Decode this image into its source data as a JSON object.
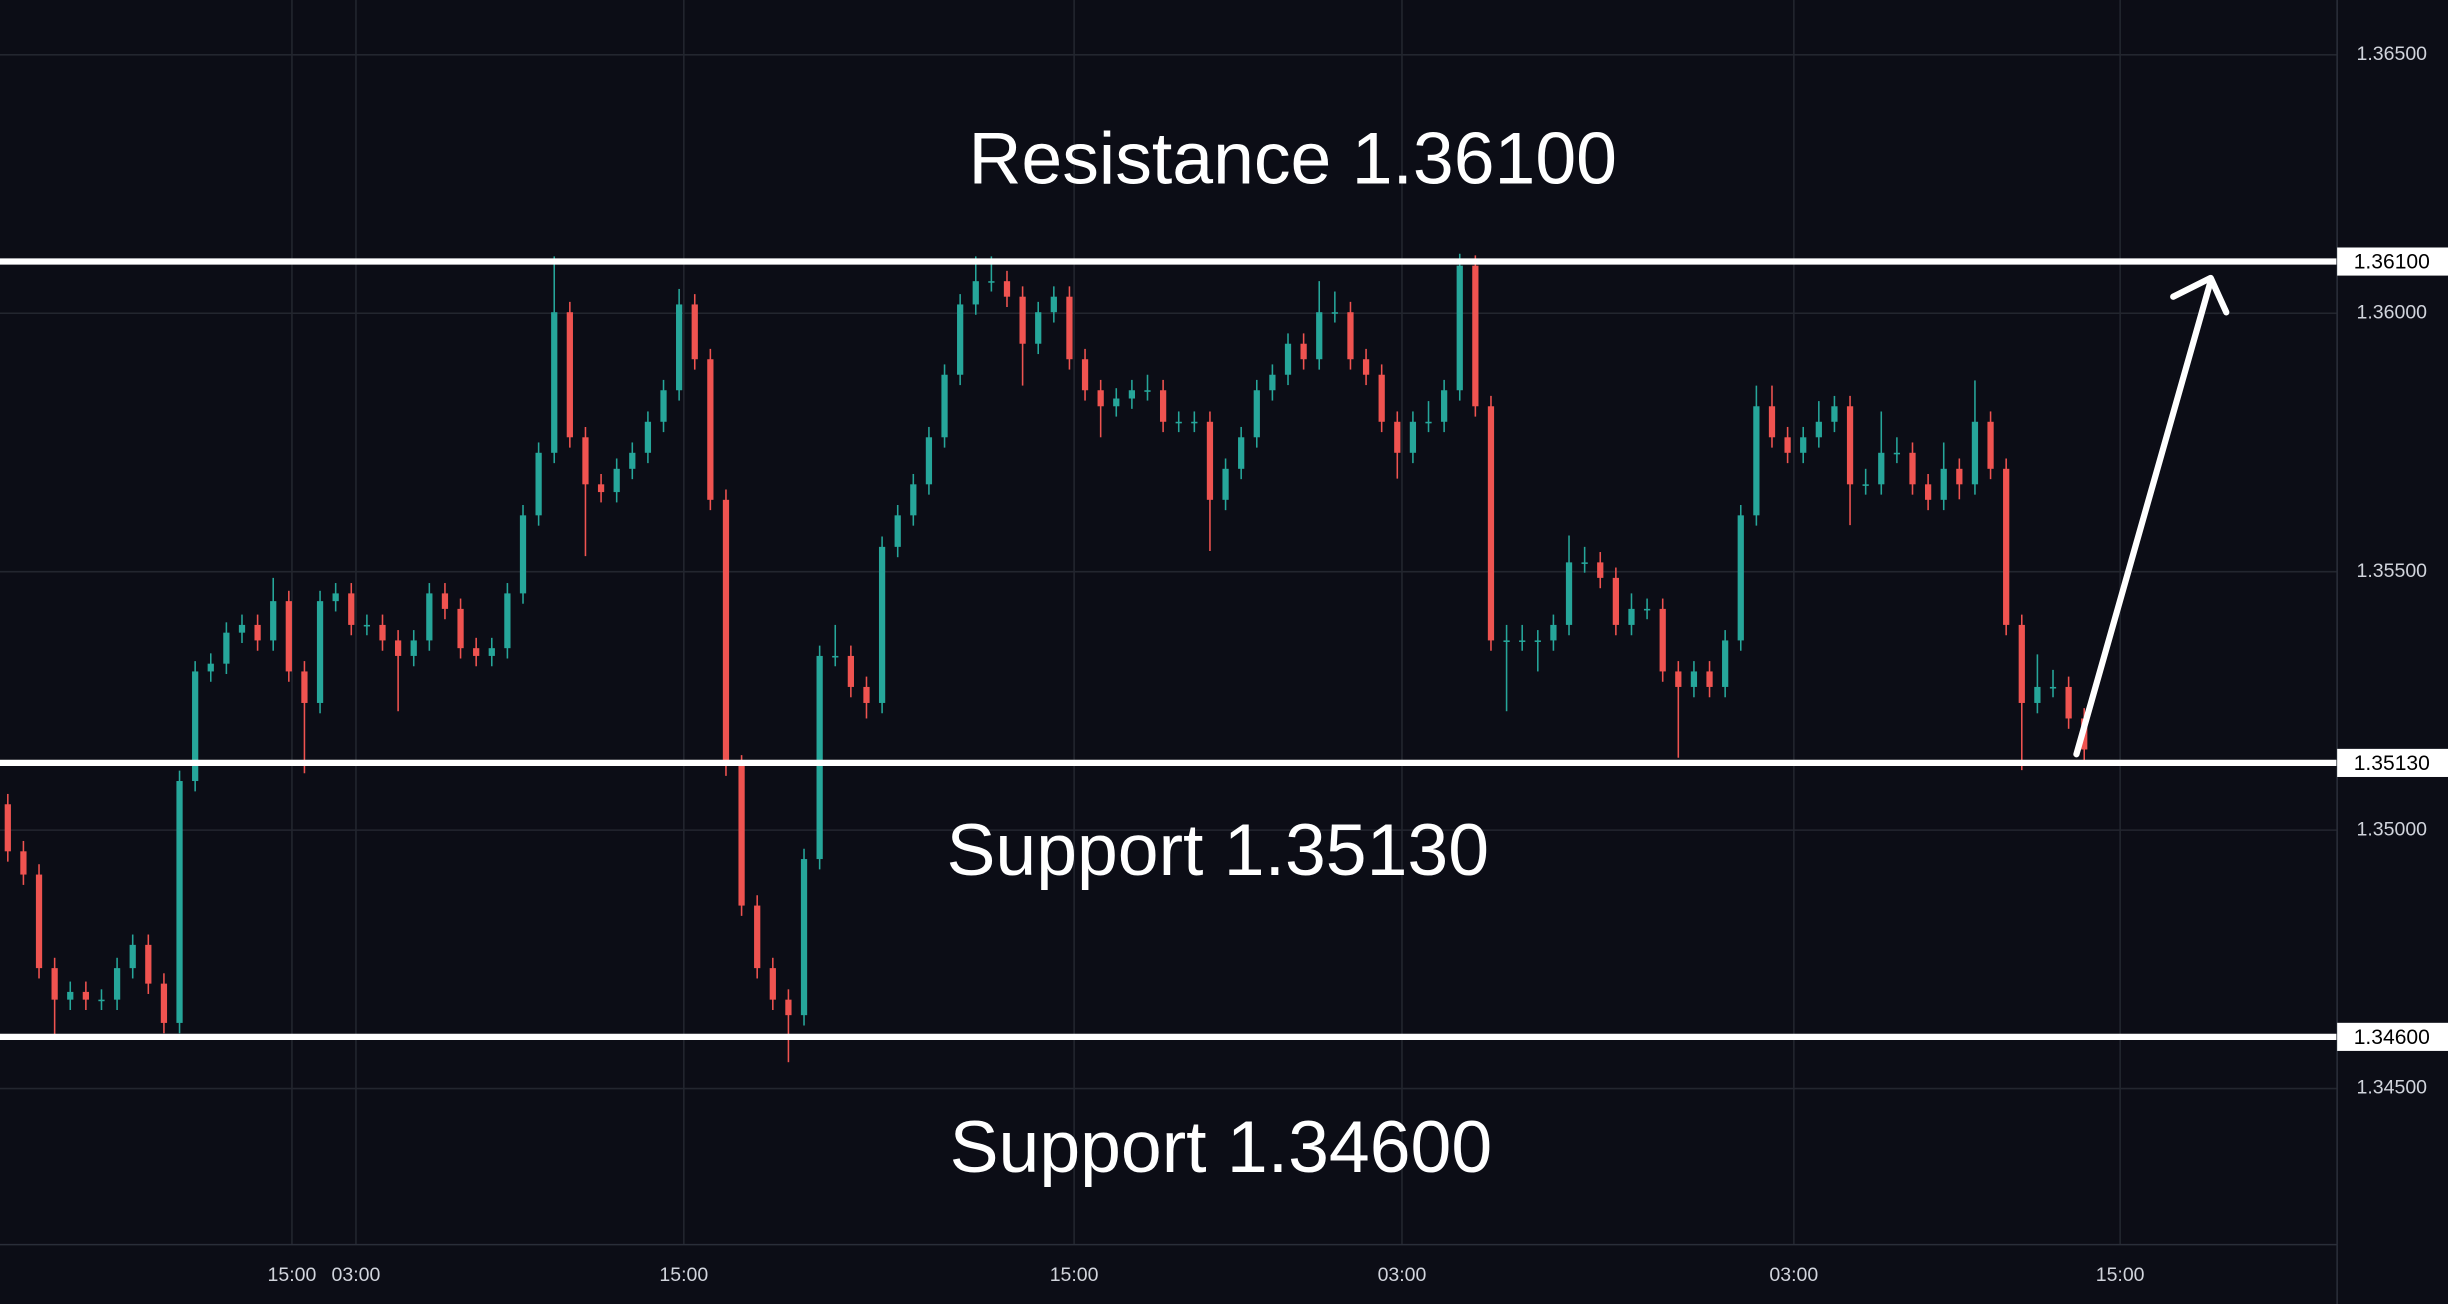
{
  "chart_data": {
    "type": "candlestick",
    "grid": true,
    "up_color": "#26a69a",
    "down_color": "#ef5350",
    "annotations": [
      "Resistance 1.36100",
      "Support 1.35130",
      "Support 1.34600"
    ],
    "levels": [
      {
        "value": 1.361,
        "label": "1.36100"
      },
      {
        "value": 1.3513,
        "label": "1.35130"
      },
      {
        "value": 1.346,
        "label": "1.34600"
      }
    ],
    "xlim": [
      -0.5,
      149.2
    ],
    "xticks": [
      {
        "value": 18.2,
        "label": "15:00"
      },
      {
        "value": 22.3,
        "label": "03:00"
      },
      {
        "value": 43.3,
        "label": "15:00"
      },
      {
        "value": 68.3,
        "label": "15:00"
      },
      {
        "value": 89.3,
        "label": "03:00"
      },
      {
        "value": 114.4,
        "label": "03:00"
      },
      {
        "value": 135.3,
        "label": "15:00"
      }
    ],
    "ylim": [
      1.34198,
      1.36606
    ],
    "yticks": [
      {
        "value": 1.345,
        "label": "1.34500"
      },
      {
        "value": 1.35,
        "label": "1.35000"
      },
      {
        "value": 1.355,
        "label": "1.35500"
      },
      {
        "value": 1.36,
        "label": "1.36000"
      },
      {
        "value": 1.365,
        "label": "1.36500"
      }
    ],
    "open": [
      1.3505,
      1.34959,
      1.34914,
      1.34733,
      1.34672,
      1.34687,
      1.34672,
      1.34672,
      1.34733,
      1.34778,
      1.34703,
      1.34627,
      1.35095,
      1.35307,
      1.35322,
      1.35382,
      1.35397,
      1.35367,
      1.35443,
      1.35307,
      1.35246,
      1.35443,
      1.35458,
      1.35397,
      1.35397,
      1.35367,
      1.35337,
      1.35367,
      1.35458,
      1.35428,
      1.35352,
      1.35337,
      1.35352,
      1.35458,
      1.35609,
      1.3573,
      1.36002,
      1.3576,
      1.35669,
      1.35654,
      1.35699,
      1.3573,
      1.3579,
      1.35851,
      1.36017,
      1.35911,
      1.35639,
      1.35125,
      1.34854,
      1.34733,
      1.34672,
      1.34642,
      1.34944,
      1.35337,
      1.35337,
      1.35277,
      1.35246,
      1.35548,
      1.35609,
      1.35669,
      1.3576,
      1.35881,
      1.36017,
      1.36062,
      1.36062,
      1.36032,
      1.35941,
      1.36002,
      1.36032,
      1.35911,
      1.35851,
      1.3582,
      1.35835,
      1.35851,
      1.35851,
      1.3579,
      1.3579,
      1.3579,
      1.35639,
      1.35699,
      1.3576,
      1.35851,
      1.35881,
      1.35941,
      1.35911,
      1.36002,
      1.36002,
      1.35911,
      1.35881,
      1.3579,
      1.3573,
      1.3579,
      1.3579,
      1.35851,
      1.36092,
      1.3582,
      1.35367,
      1.35367,
      1.35367,
      1.35367,
      1.35397,
      1.35518,
      1.35518,
      1.35488,
      1.35397,
      1.35428,
      1.35428,
      1.35307,
      1.35277,
      1.35307,
      1.35277,
      1.35367,
      1.35609,
      1.3582,
      1.3576,
      1.3573,
      1.3576,
      1.3579,
      1.3582,
      1.35669,
      1.35669,
      1.3573,
      1.3573,
      1.35669,
      1.35639,
      1.35699,
      1.35669,
      1.3579,
      1.35699,
      1.35397,
      1.35246,
      1.35277,
      1.35277,
      1.35216
    ],
    "high": [
      1.3507,
      1.34979,
      1.34934,
      1.34753,
      1.34707,
      1.34707,
      1.34692,
      1.34753,
      1.34798,
      1.34798,
      1.34723,
      1.35115,
      1.35327,
      1.35342,
      1.35402,
      1.35417,
      1.35417,
      1.35488,
      1.35463,
      1.35327,
      1.35463,
      1.35478,
      1.35478,
      1.35417,
      1.35417,
      1.35387,
      1.35387,
      1.35478,
      1.35478,
      1.35448,
      1.35372,
      1.35372,
      1.35478,
      1.35629,
      1.3575,
      1.3611,
      1.36022,
      1.3578,
      1.35689,
      1.35719,
      1.3575,
      1.3581,
      1.35871,
      1.36047,
      1.36037,
      1.35931,
      1.35659,
      1.35145,
      1.34874,
      1.34753,
      1.34692,
      1.34964,
      1.35357,
      1.35397,
      1.35357,
      1.35297,
      1.35568,
      1.35629,
      1.35689,
      1.3578,
      1.35901,
      1.36037,
      1.3611,
      1.3611,
      1.36082,
      1.36052,
      1.36022,
      1.36052,
      1.36052,
      1.35931,
      1.35871,
      1.35855,
      1.35871,
      1.35881,
      1.35871,
      1.3581,
      1.3581,
      1.3581,
      1.35719,
      1.3578,
      1.35871,
      1.35901,
      1.35961,
      1.35961,
      1.36062,
      1.36042,
      1.36022,
      1.35931,
      1.35901,
      1.3581,
      1.3581,
      1.3583,
      1.35871,
      1.36115,
      1.36112,
      1.3584,
      1.35397,
      1.35397,
      1.35387,
      1.35417,
      1.3557,
      1.35548,
      1.35538,
      1.35508,
      1.35458,
      1.35448,
      1.35448,
      1.35327,
      1.35327,
      1.35327,
      1.35387,
      1.35629,
      1.3586,
      1.3586,
      1.3578,
      1.3578,
      1.3583,
      1.3584,
      1.3584,
      1.35699,
      1.3581,
      1.3576,
      1.3575,
      1.35689,
      1.3575,
      1.35719,
      1.3587,
      1.3581,
      1.35719,
      1.35417,
      1.3534,
      1.3531,
      1.35297,
      1.35236
    ],
    "low": [
      1.34939,
      1.34894,
      1.34713,
      1.346,
      1.34652,
      1.34652,
      1.34652,
      1.34652,
      1.34713,
      1.34683,
      1.34607,
      1.34607,
      1.35075,
      1.35287,
      1.35302,
      1.35362,
      1.35347,
      1.35347,
      1.35287,
      1.3511,
      1.35226,
      1.35423,
      1.35377,
      1.35377,
      1.35347,
      1.3523,
      1.35317,
      1.35347,
      1.35408,
      1.35332,
      1.35317,
      1.35317,
      1.35332,
      1.35438,
      1.35589,
      1.3571,
      1.3574,
      1.3553,
      1.35634,
      1.35634,
      1.35679,
      1.3571,
      1.3577,
      1.35831,
      1.35891,
      1.35619,
      1.35105,
      1.34834,
      1.34713,
      1.34652,
      1.34551,
      1.34622,
      1.34924,
      1.35317,
      1.35257,
      1.35216,
      1.35226,
      1.35528,
      1.35589,
      1.35649,
      1.3574,
      1.35861,
      1.35997,
      1.36042,
      1.36012,
      1.3586,
      1.35921,
      1.35982,
      1.35891,
      1.35831,
      1.3576,
      1.358,
      1.35815,
      1.35831,
      1.3577,
      1.3577,
      1.3577,
      1.3554,
      1.35619,
      1.35679,
      1.3574,
      1.35831,
      1.35861,
      1.35891,
      1.35891,
      1.35982,
      1.35891,
      1.35861,
      1.3577,
      1.3568,
      1.3571,
      1.3577,
      1.3577,
      1.35831,
      1.358,
      1.35347,
      1.3523,
      1.35347,
      1.35307,
      1.35347,
      1.35377,
      1.35498,
      1.35468,
      1.35377,
      1.35377,
      1.35408,
      1.35287,
      1.3514,
      1.35257,
      1.35257,
      1.35257,
      1.35347,
      1.35589,
      1.3574,
      1.3571,
      1.3571,
      1.3574,
      1.3577,
      1.3559,
      1.35649,
      1.35649,
      1.3571,
      1.35649,
      1.35619,
      1.35619,
      1.3564,
      1.35649,
      1.35679,
      1.35377,
      1.35116,
      1.35226,
      1.35257,
      1.35196,
      1.3513
    ],
    "close": [
      1.34959,
      1.34914,
      1.34733,
      1.34672,
      1.34687,
      1.34672,
      1.34672,
      1.34733,
      1.34778,
      1.34703,
      1.34627,
      1.35095,
      1.35307,
      1.35322,
      1.35382,
      1.35397,
      1.35367,
      1.35443,
      1.35307,
      1.35246,
      1.35443,
      1.35458,
      1.35397,
      1.35397,
      1.35367,
      1.35337,
      1.35367,
      1.35458,
      1.35428,
      1.35352,
      1.35337,
      1.35352,
      1.35458,
      1.35609,
      1.3573,
      1.36002,
      1.3576,
      1.35669,
      1.35654,
      1.35699,
      1.3573,
      1.3579,
      1.35851,
      1.36017,
      1.35911,
      1.35639,
      1.35125,
      1.34854,
      1.34733,
      1.34672,
      1.34642,
      1.34944,
      1.35337,
      1.35337,
      1.35277,
      1.35246,
      1.35548,
      1.35609,
      1.35669,
      1.3576,
      1.35881,
      1.36017,
      1.36062,
      1.36062,
      1.36032,
      1.35941,
      1.36002,
      1.36032,
      1.35911,
      1.35851,
      1.3582,
      1.35835,
      1.35851,
      1.35851,
      1.3579,
      1.3579,
      1.3579,
      1.35639,
      1.35699,
      1.3576,
      1.35851,
      1.35881,
      1.35941,
      1.35911,
      1.36002,
      1.36002,
      1.35911,
      1.35881,
      1.3579,
      1.3573,
      1.3579,
      1.3579,
      1.35851,
      1.36092,
      1.3582,
      1.35367,
      1.35367,
      1.35367,
      1.35367,
      1.35397,
      1.35518,
      1.35518,
      1.35488,
      1.35397,
      1.35428,
      1.35428,
      1.35307,
      1.35277,
      1.35307,
      1.35277,
      1.35367,
      1.35609,
      1.3582,
      1.3576,
      1.3573,
      1.3576,
      1.3579,
      1.3582,
      1.35669,
      1.35669,
      1.3573,
      1.3573,
      1.35669,
      1.35639,
      1.35699,
      1.35669,
      1.3579,
      1.35699,
      1.35397,
      1.35246,
      1.35277,
      1.35277,
      1.35216,
      1.35156
    ]
  }
}
